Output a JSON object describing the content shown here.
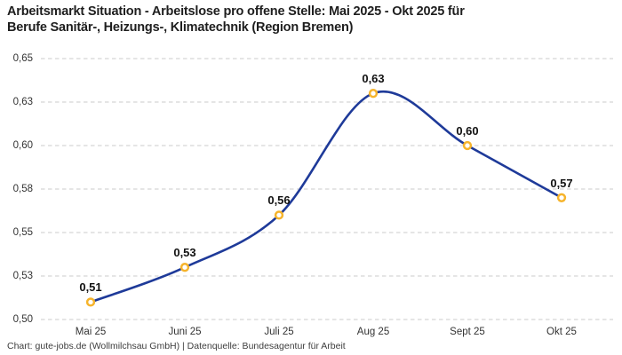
{
  "header": {
    "title_lines": [
      "Arbeitsmarkt Situation - Arbeitslose pro offene Stelle: Mai 2025 - Okt 2025 für",
      "Berufe Sanitär-, Heizungs-, Klimatechnik (Region Bremen)"
    ]
  },
  "footer": {
    "text": "Chart: gute-jobs.de (Wollmilchsau GmbH) | Datenquelle: Bundesagentur für Arbeit"
  },
  "chart_data": {
    "type": "line",
    "title": "Arbeitsmarkt Situation - Arbeitslose pro offene Stelle: Mai 2025 - Okt 2025 für Berufe Sanitär-, Heizungs-, Klimatechnik (Region Bremen)",
    "categories": [
      "Mai 25",
      "Juni 25",
      "Juli 25",
      "Aug 25",
      "Sept 25",
      "Okt 25"
    ],
    "values": [
      0.51,
      0.53,
      0.56,
      0.63,
      0.6,
      0.57
    ],
    "point_labels": [
      "0,51",
      "0,53",
      "0,56",
      "0,63",
      "0,60",
      "0,57"
    ],
    "xlabel": "",
    "ylabel": "",
    "ylim": [
      0.5,
      0.65
    ],
    "y_ticks": [
      {
        "value": 0.65,
        "label": "0,65"
      },
      {
        "value": 0.625,
        "label": "0,63"
      },
      {
        "value": 0.6,
        "label": "0,60"
      },
      {
        "value": 0.575,
        "label": "0,58"
      },
      {
        "value": 0.55,
        "label": "0,55"
      },
      {
        "value": 0.525,
        "label": "0,53"
      },
      {
        "value": 0.5,
        "label": "0,50"
      }
    ],
    "grid": "horizontal-dashed",
    "legend": "none",
    "curve": "smooth",
    "colors": {
      "line": "#1e3a99",
      "marker_ring": "#f6b42c",
      "marker_fill": "#ffffff",
      "gridline": "#cbcbcb",
      "title_text": "#1e1e1e",
      "axis_text": "#333333",
      "point_label_text": "#111111",
      "source_text": "#3d3d3d",
      "background": "#ffffff"
    }
  }
}
